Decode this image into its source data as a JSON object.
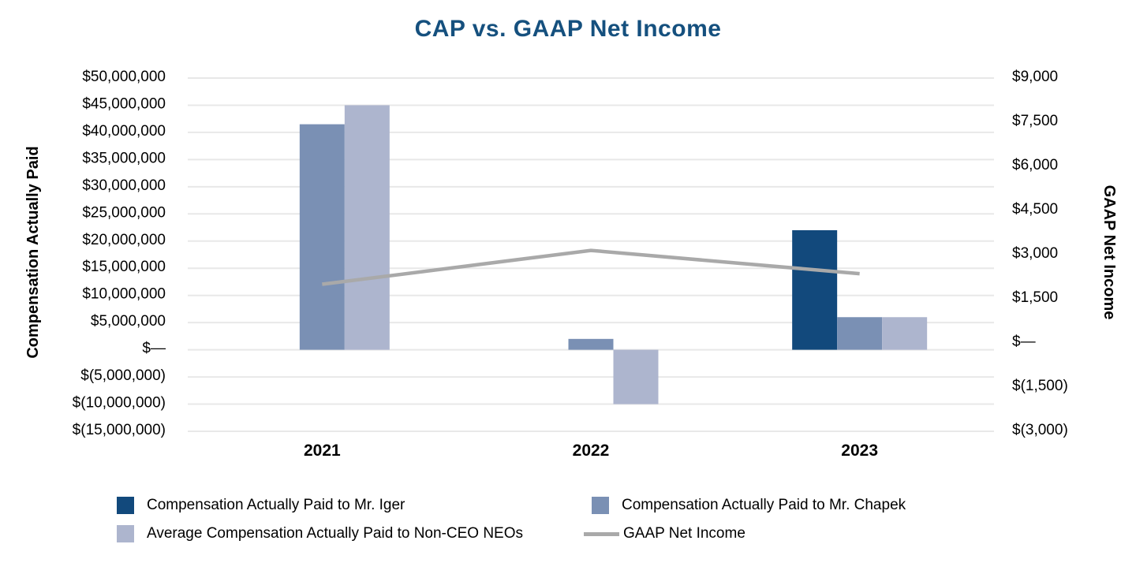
{
  "title": "CAP vs. GAAP Net Income",
  "colors": {
    "title": "#15507E",
    "iger": "#12497C",
    "chapek": "#7A90B4",
    "neos": "#ADB5CE",
    "line": "#A9A9A9",
    "grid": "#E8E8E8",
    "text": "#000000"
  },
  "chart_data": {
    "type": "bar+line",
    "title": "CAP vs. GAAP Net Income",
    "categories": [
      "2021",
      "2022",
      "2023"
    ],
    "series": [
      {
        "name": "Compensation Actually Paid to Mr. Iger",
        "key": "iger",
        "type": "bar",
        "axis": "left",
        "values": [
          null,
          null,
          22000000
        ]
      },
      {
        "name": "Compensation Actually Paid to Mr. Chapek",
        "key": "chapek",
        "type": "bar",
        "axis": "left",
        "values": [
          41500000,
          2000000,
          6000000
        ]
      },
      {
        "name": "Average Compensation Actually Paid to Non-CEO NEOs",
        "key": "neos",
        "type": "bar",
        "axis": "left",
        "values": [
          45000000,
          -10000000,
          6000000
        ]
      },
      {
        "name": "GAAP Net Income",
        "key": "gaap",
        "type": "line",
        "axis": "right",
        "values": [
          1995,
          3145,
          2354
        ]
      }
    ],
    "left_axis": {
      "label": "Compensation Actually Paid",
      "min": -15000000,
      "max": 50000000,
      "step": 5000000,
      "ticks": [
        "$50,000,000",
        "$45,000,000",
        "$40,000,000",
        "$35,000,000",
        "$30,000,000",
        "$25,000,000",
        "$20,000,000",
        "$15,000,000",
        "$10,000,000",
        "$5,000,000",
        "$—",
        "$(5,000,000)",
        "$(10,000,000)",
        "$(15,000,000)"
      ]
    },
    "right_axis": {
      "label": "GAAP Net Income",
      "min": -3000,
      "max": 9000,
      "step": 1500,
      "ticks": [
        "$9,000",
        "$7,500",
        "$6,000",
        "$4,500",
        "$3,000",
        "$1,500",
        "$—",
        "$(1,500)",
        "$(3,000)"
      ]
    },
    "grid": true,
    "legend_position": "bottom"
  },
  "legend": {
    "items": [
      {
        "label": "Compensation Actually Paid to Mr. Iger",
        "swatch": "square",
        "color_key": "iger"
      },
      {
        "label": "Average Compensation Actually Paid to Non-CEO NEOs",
        "swatch": "square",
        "color_key": "neos"
      },
      {
        "label": "Compensation Actually Paid to Mr. Chapek",
        "swatch": "square",
        "color_key": "chapek"
      },
      {
        "label": "GAAP Net Income",
        "swatch": "line",
        "color_key": "line"
      }
    ]
  }
}
